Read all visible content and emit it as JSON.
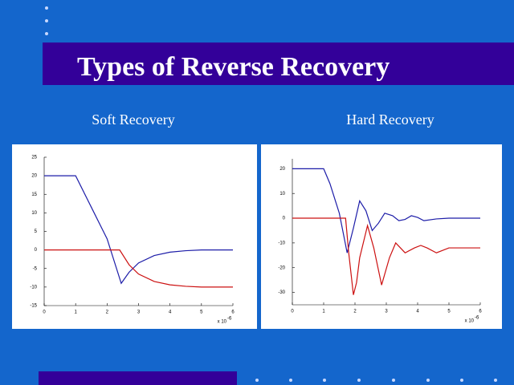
{
  "title": "Types of Reverse Recovery",
  "chart_data": [
    {
      "type": "line",
      "title": "Soft Recovery",
      "x_label": "x 10",
      "x_label_exp": "-6",
      "xlim": [
        0,
        6
      ],
      "xticks": [
        0,
        1,
        2,
        3,
        4,
        5,
        6
      ],
      "ylim": [
        -15,
        25
      ],
      "yticks": [
        25,
        20,
        15,
        10,
        5,
        0,
        -5,
        -10,
        -15
      ],
      "series": [
        {
          "color": "#1c1ca8",
          "x": [
            0,
            0.5,
            1,
            1.5,
            2,
            2.45,
            2.7,
            3,
            3.5,
            4,
            4.5,
            5,
            5.5,
            6
          ],
          "values": [
            20,
            20,
            20,
            11.5,
            3,
            -9,
            -6,
            -3.5,
            -1.5,
            -0.6,
            -0.2,
            0,
            0,
            0
          ]
        },
        {
          "color": "#cc1010",
          "x": [
            0,
            1,
            2,
            2.4,
            2.7,
            3,
            3.5,
            4,
            4.5,
            5,
            5.5,
            6
          ],
          "values": [
            0,
            0,
            0,
            0,
            -4,
            -6.5,
            -8.5,
            -9.4,
            -9.8,
            -10,
            -10,
            -10
          ]
        }
      ]
    },
    {
      "type": "line",
      "title": "Hard Recovery",
      "x_label": "x 10",
      "x_label_exp": "-6",
      "xlim": [
        0,
        6
      ],
      "xticks": [
        0,
        1,
        2,
        3,
        4,
        5,
        6
      ],
      "ylim": [
        -35,
        24
      ],
      "yticks": [
        20,
        10,
        0,
        -10,
        -20,
        -30
      ],
      "series": [
        {
          "color": "#1c1ca8",
          "x": [
            0,
            0.5,
            1,
            1.2,
            1.5,
            1.75,
            1.95,
            2.15,
            2.35,
            2.55,
            2.75,
            2.95,
            3.2,
            3.4,
            3.6,
            3.8,
            4.0,
            4.2,
            4.6,
            5,
            5.5,
            6
          ],
          "values": [
            20,
            20,
            20,
            14,
            2,
            -14,
            -4,
            7,
            3,
            -5,
            -2,
            2,
            1,
            -1,
            -0.5,
            1,
            0.3,
            -1,
            -0.3,
            0,
            0,
            0
          ]
        },
        {
          "color": "#cc1010",
          "x": [
            0,
            0.5,
            1,
            1.5,
            1.7,
            1.8,
            1.95,
            2.05,
            2.15,
            2.4,
            2.6,
            2.85,
            3.1,
            3.3,
            3.6,
            3.9,
            4.1,
            4.3,
            4.6,
            5,
            5.5,
            6
          ],
          "values": [
            0,
            0,
            0,
            0,
            0,
            -14,
            -31,
            -26,
            -16,
            -3,
            -12,
            -27,
            -16,
            -10,
            -14,
            -12,
            -11,
            -12,
            -14,
            -12,
            -12,
            -12
          ]
        }
      ]
    }
  ]
}
